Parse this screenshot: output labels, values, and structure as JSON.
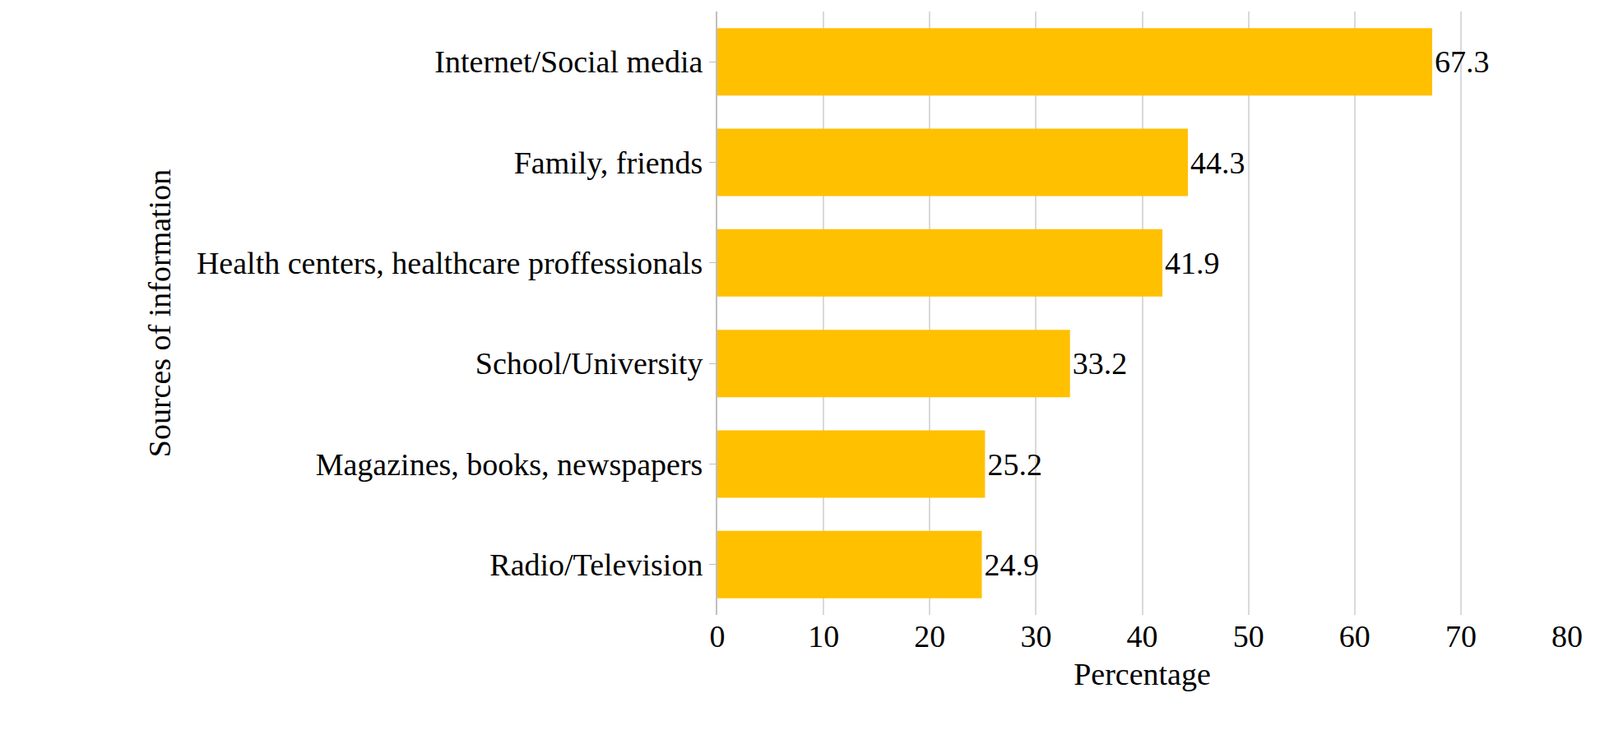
{
  "chart_data": {
    "type": "bar",
    "orientation": "horizontal",
    "x_label": "Percentage",
    "y_label": "Sources of information",
    "categories": [
      "Internet/Social media",
      "Family, friends",
      "Health centers, healthcare proffessionals",
      "School/University",
      "Magazines, books, newspapers",
      "Radio/Television"
    ],
    "values": [
      67.3,
      44.3,
      41.9,
      33.2,
      25.2,
      24.9
    ],
    "color": "#ffc000",
    "xlim": [
      0,
      80
    ],
    "xticks": [
      0,
      10,
      20,
      30,
      40,
      50,
      60,
      70,
      80
    ],
    "grid": true,
    "data_labels": true
  }
}
